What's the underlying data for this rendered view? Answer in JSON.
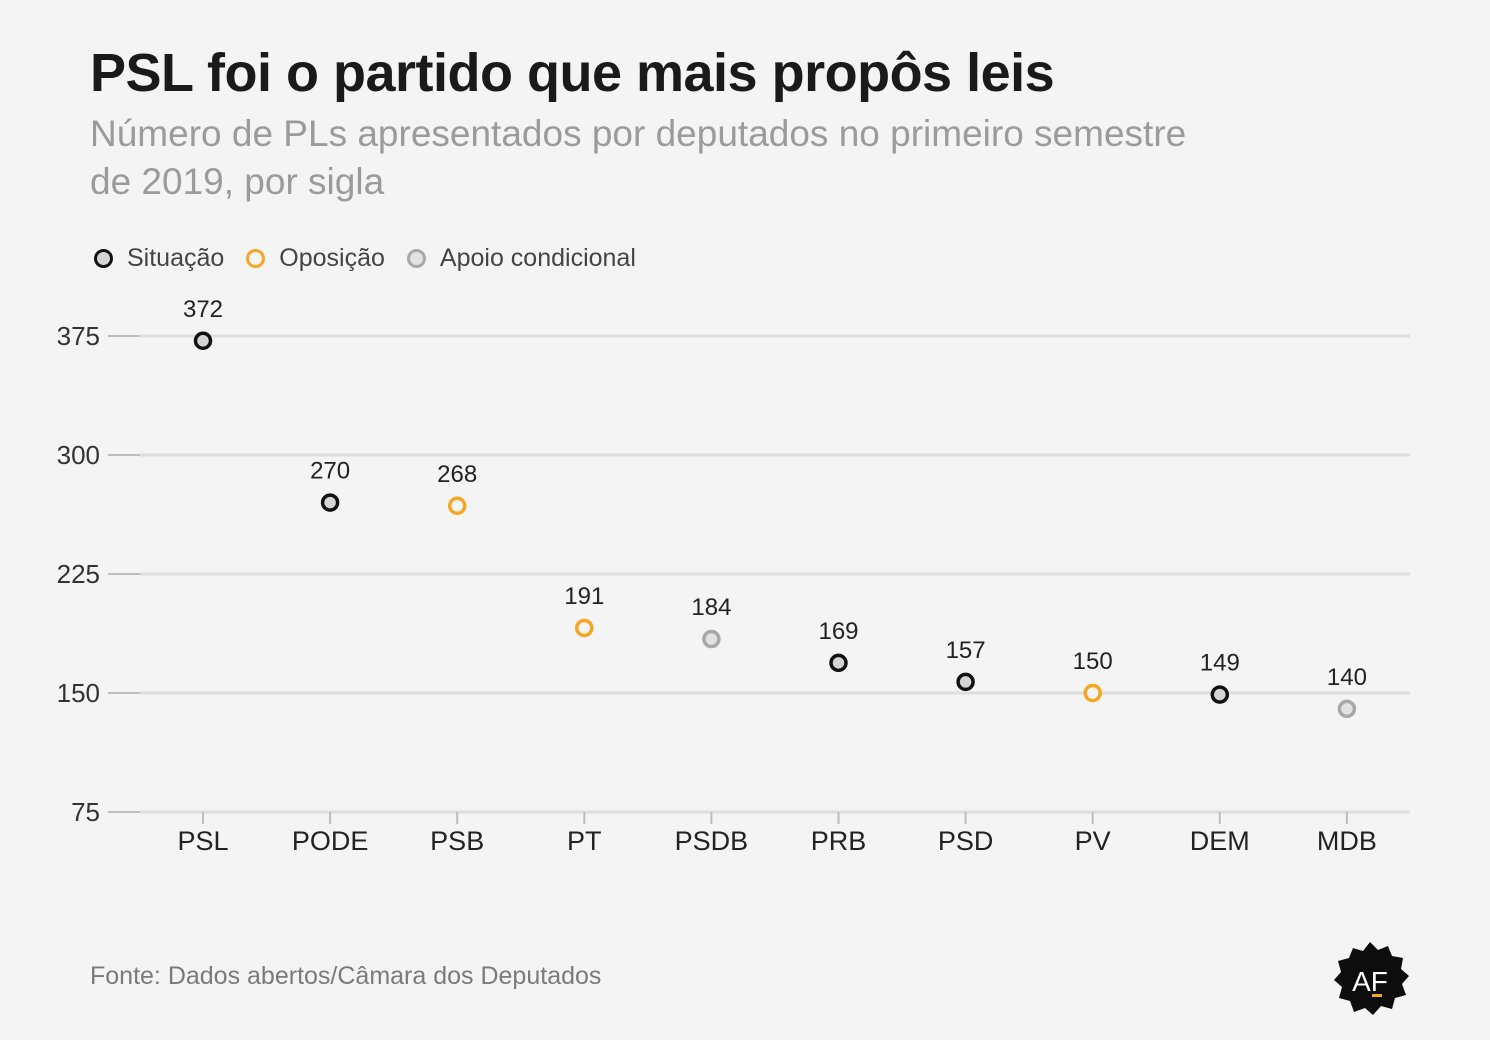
{
  "header": {
    "title": "PSL foi o partido que mais propôs leis",
    "subtitle": "Número de PLs apresentados por deputados no primeiro semestre de 2019, por sigla"
  },
  "legend": [
    {
      "label": "Situação",
      "key": "situacao"
    },
    {
      "label": "Oposição",
      "key": "oposicao"
    },
    {
      "label": "Apoio condicional",
      "key": "apoio"
    }
  ],
  "colors": {
    "situacao_stroke": "#111111",
    "situacao_fill": "#d4d4d4",
    "oposicao_stroke": "#f5a623",
    "oposicao_fill": "#f4f4f4",
    "apoio_stroke": "#a8a8a8",
    "apoio_fill": "#e2e2e2",
    "grid": "#dedede"
  },
  "chart_data": {
    "type": "scatter",
    "categories": [
      "PSL",
      "PODE",
      "PSB",
      "PT",
      "PSDB",
      "PRB",
      "PSD",
      "PV",
      "DEM",
      "MDB"
    ],
    "values": [
      372,
      270,
      268,
      191,
      184,
      169,
      157,
      150,
      149,
      140
    ],
    "groups": [
      "situacao",
      "situacao",
      "oposicao",
      "oposicao",
      "apoio",
      "situacao",
      "situacao",
      "oposicao",
      "situacao",
      "apoio"
    ],
    "yticks": [
      75,
      150,
      225,
      300,
      375
    ],
    "ylim": [
      75,
      375
    ],
    "grid": true,
    "legend_position": "top-left",
    "data_labels": true
  },
  "footer": {
    "source": "Fonte: Dados abertos/Câmara dos Deputados",
    "logo_text": "AF"
  }
}
